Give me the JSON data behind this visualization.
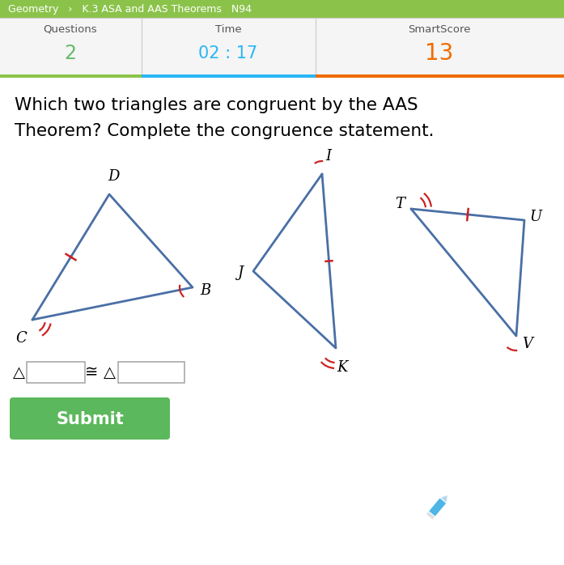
{
  "bg_color": "#ffffff",
  "header_green": "#8bc34a",
  "header_light": "#f0f0f0",
  "header_text": "#666666",
  "time_color": "#29b6f6",
  "score_color": "#ef6c00",
  "green_value": "#66bb6a",
  "title_text1": "Which two triangles are congruent by the AAS",
  "title_text2": "Theorem? Complete the congruence statement.",
  "nav_text": "Geometry   ›   K.3 ASA and AAS Theorems   N94",
  "triangle_color": "#4a6fa5",
  "mark_color": "#cc2222",
  "submit_color": "#5cb85c",
  "pencil_color": "#4db6e4",
  "tri1": {
    "C": [
      40,
      395
    ],
    "D": [
      135,
      240
    ],
    "B": [
      238,
      355
    ]
  },
  "tri2": {
    "I": [
      398,
      215
    ],
    "J": [
      313,
      335
    ],
    "K": [
      415,
      430
    ]
  },
  "tri3": {
    "T": [
      508,
      258
    ],
    "U": [
      648,
      272
    ],
    "V": [
      638,
      415
    ]
  }
}
